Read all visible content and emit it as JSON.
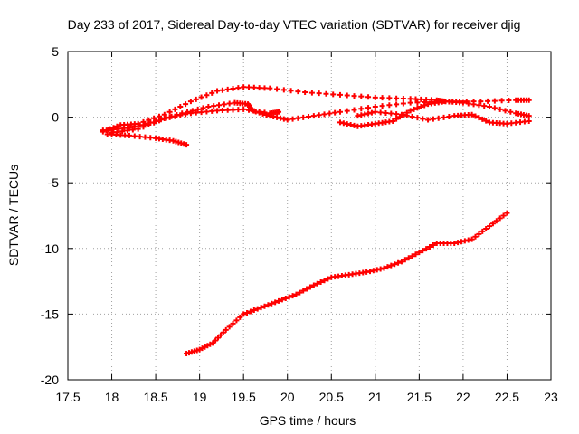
{
  "chart_data": {
    "type": "scatter",
    "title": "Day 233 of 2017, Sidereal Day-to-day VTEC variation (SDTVAR) for receiver djig",
    "xlabel": "GPS time / hours",
    "ylabel": "SDTVAR / TECUs",
    "xlim": [
      17.5,
      23
    ],
    "ylim": [
      -20,
      5
    ],
    "xticks": [
      "17.5",
      "18",
      "18.5",
      "19",
      "19.5",
      "20",
      "20.5",
      "21",
      "21.5",
      "22",
      "22.5",
      "23"
    ],
    "yticks": [
      "5",
      "0",
      "-5",
      "-10",
      "-15",
      "-20"
    ],
    "grid": true,
    "marker_color": "#ff0000",
    "series": [
      {
        "name": "track-1",
        "points": [
          [
            17.9,
            -1.1
          ],
          [
            18.1,
            -0.6
          ],
          [
            18.3,
            -0.5
          ],
          [
            18.6,
            0.2
          ],
          [
            18.9,
            1.2
          ],
          [
            19.2,
            2.0
          ],
          [
            19.5,
            2.3
          ],
          [
            19.8,
            2.2
          ],
          [
            20.2,
            1.9
          ],
          [
            20.6,
            1.7
          ],
          [
            21.0,
            1.5
          ],
          [
            21.4,
            1.4
          ],
          [
            21.7,
            1.3
          ],
          [
            21.8,
            1.2
          ]
        ]
      },
      {
        "name": "track-2",
        "points": [
          [
            17.95,
            -1.3
          ],
          [
            18.2,
            -1.4
          ],
          [
            18.5,
            -1.6
          ],
          [
            18.7,
            -1.8
          ],
          [
            18.85,
            -2.1
          ]
        ]
      },
      {
        "name": "track-3",
        "points": [
          [
            17.9,
            -1.0
          ],
          [
            18.2,
            -0.8
          ],
          [
            18.5,
            -0.3
          ],
          [
            18.8,
            0.3
          ],
          [
            19.1,
            0.8
          ],
          [
            19.4,
            1.1
          ],
          [
            19.55,
            1.0
          ],
          [
            19.6,
            0.5
          ],
          [
            19.8,
            0.1
          ],
          [
            20.0,
            -0.2
          ],
          [
            20.3,
            0.1
          ],
          [
            20.6,
            0.4
          ],
          [
            21.0,
            0.8
          ],
          [
            21.4,
            1.1
          ],
          [
            21.8,
            1.2
          ],
          [
            22.2,
            1.2
          ],
          [
            22.6,
            1.3
          ],
          [
            22.75,
            1.3
          ]
        ]
      },
      {
        "name": "track-4",
        "points": [
          [
            18.0,
            -1.2
          ],
          [
            18.3,
            -0.9
          ],
          [
            18.6,
            -0.1
          ],
          [
            18.9,
            0.3
          ],
          [
            19.2,
            0.5
          ],
          [
            19.5,
            0.6
          ],
          [
            19.8,
            0.3
          ],
          [
            19.9,
            0.4
          ]
        ]
      },
      {
        "name": "track-5",
        "points": [
          [
            20.6,
            -0.4
          ],
          [
            20.8,
            -0.7
          ],
          [
            21.0,
            -0.5
          ],
          [
            21.2,
            -0.3
          ],
          [
            21.4,
            0.5
          ],
          [
            21.6,
            1.0
          ],
          [
            21.8,
            1.2
          ],
          [
            22.0,
            1.1
          ],
          [
            22.3,
            0.8
          ],
          [
            22.6,
            0.3
          ],
          [
            22.75,
            0.1
          ]
        ]
      },
      {
        "name": "track-6",
        "points": [
          [
            20.8,
            0.1
          ],
          [
            21.0,
            0.4
          ],
          [
            21.3,
            0.2
          ],
          [
            21.6,
            -0.2
          ],
          [
            21.9,
            0.1
          ],
          [
            22.1,
            0.2
          ],
          [
            22.3,
            -0.4
          ],
          [
            22.5,
            -0.5
          ],
          [
            22.75,
            -0.3
          ]
        ]
      },
      {
        "name": "track-7",
        "points": [
          [
            18.85,
            -18.0
          ],
          [
            19.0,
            -17.7
          ],
          [
            19.15,
            -17.2
          ],
          [
            19.3,
            -16.2
          ],
          [
            19.5,
            -15.0
          ],
          [
            19.7,
            -14.5
          ],
          [
            19.9,
            -14.0
          ],
          [
            20.1,
            -13.5
          ],
          [
            20.3,
            -12.8
          ],
          [
            20.5,
            -12.2
          ],
          [
            20.7,
            -12.0
          ],
          [
            20.9,
            -11.8
          ],
          [
            21.1,
            -11.5
          ],
          [
            21.3,
            -11.0
          ],
          [
            21.5,
            -10.3
          ],
          [
            21.7,
            -9.6
          ],
          [
            21.9,
            -9.6
          ],
          [
            22.1,
            -9.3
          ],
          [
            22.3,
            -8.3
          ],
          [
            22.5,
            -7.3
          ]
        ]
      }
    ]
  }
}
